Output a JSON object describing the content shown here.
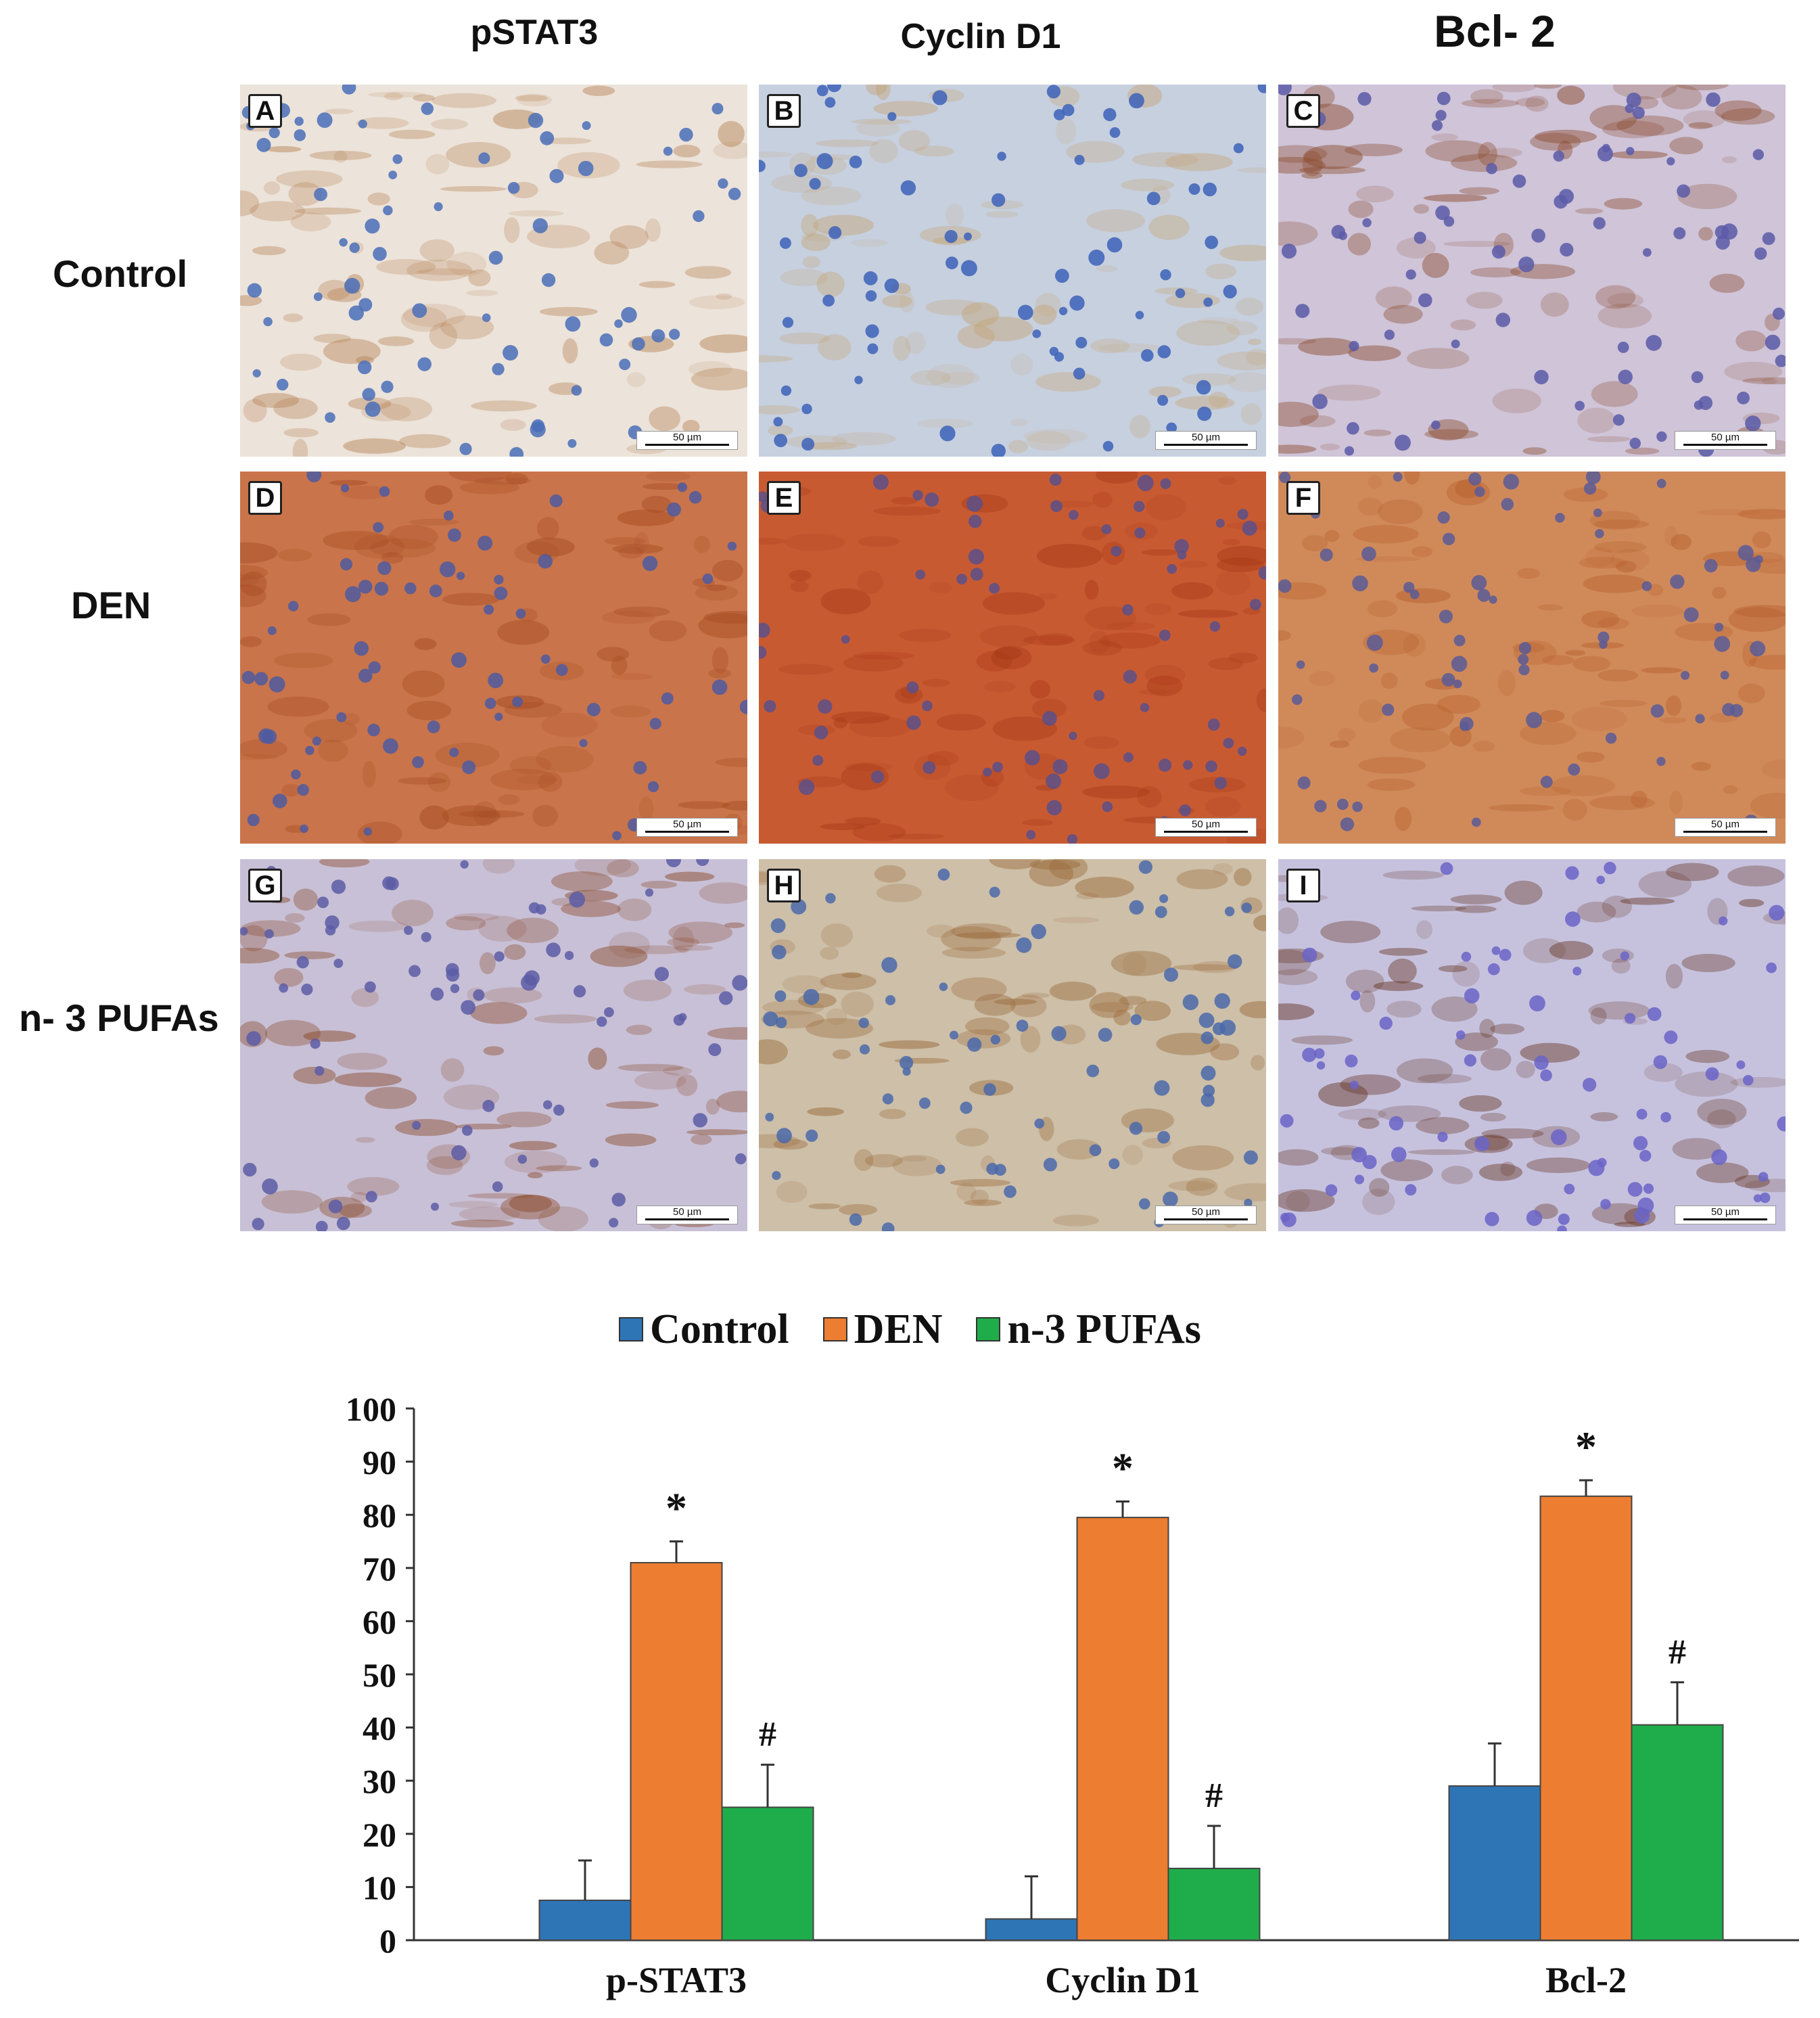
{
  "figure": {
    "column_headers": [
      "pSTAT3",
      "Cyclin D1",
      "Bcl- 2"
    ],
    "row_labels": [
      "Control",
      "DEN",
      "n- 3 PUFAs"
    ],
    "panels": [
      {
        "letter": "A",
        "scale": "50 µm"
      },
      {
        "letter": "B",
        "scale": "50 µm"
      },
      {
        "letter": "C",
        "scale": "50 µm"
      },
      {
        "letter": "D",
        "scale": "50 µm"
      },
      {
        "letter": "E",
        "scale": "50 µm"
      },
      {
        "letter": "F",
        "scale": "50 µm"
      },
      {
        "letter": "G",
        "scale": "50 µm"
      },
      {
        "letter": "H",
        "scale": "50 µm"
      },
      {
        "letter": "I",
        "scale": "50 µm"
      }
    ]
  },
  "colors": {
    "control": "#2e75b6",
    "den": "#ed7d31",
    "pufa": "#1fad4b"
  },
  "chart_data": {
    "type": "bar",
    "categories": [
      "p-STAT3",
      "Cyclin D1",
      "Bcl-2"
    ],
    "series": [
      {
        "name": "Control",
        "values": [
          7.5,
          4,
          29
        ],
        "errors": [
          7.5,
          8,
          8
        ]
      },
      {
        "name": "DEN",
        "values": [
          71,
          79.5,
          83.5
        ],
        "errors": [
          4,
          3,
          3
        ]
      },
      {
        "name": "n-3 PUFAs",
        "values": [
          25,
          13.5,
          40.5
        ],
        "errors": [
          8,
          8,
          8
        ]
      }
    ],
    "annotations": [
      [
        "",
        "*",
        "#"
      ],
      [
        "",
        "*",
        "#"
      ],
      [
        "",
        "*",
        "#"
      ]
    ],
    "ylim": [
      0,
      100
    ],
    "yticks": [
      "0",
      "10",
      "20",
      "30",
      "40",
      "50",
      "60",
      "70",
      "80",
      "90",
      "100"
    ],
    "title": "",
    "xlabel": "",
    "ylabel": "",
    "legend_position": "top",
    "grid": false
  }
}
